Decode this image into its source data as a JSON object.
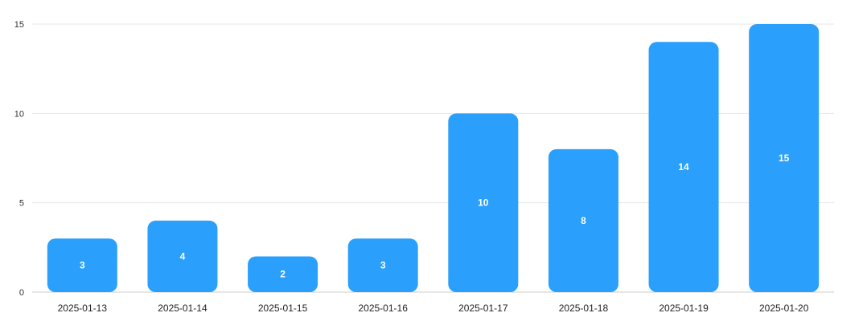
{
  "chart_data": {
    "type": "bar",
    "title": "",
    "xlabel": "",
    "ylabel": "",
    "categories": [
      "2025-01-13",
      "2025-01-14",
      "2025-01-15",
      "2025-01-16",
      "2025-01-17",
      "2025-01-18",
      "2025-01-19",
      "2025-01-20"
    ],
    "values": [
      3,
      4,
      2,
      3,
      10,
      8,
      14,
      15
    ],
    "ylim": [
      0,
      15
    ],
    "yticks": [
      0,
      5,
      10,
      15
    ],
    "grid": true,
    "bar_color": "#2b9ffc",
    "grid_color": "#e6e6e6",
    "data_labels": true
  }
}
